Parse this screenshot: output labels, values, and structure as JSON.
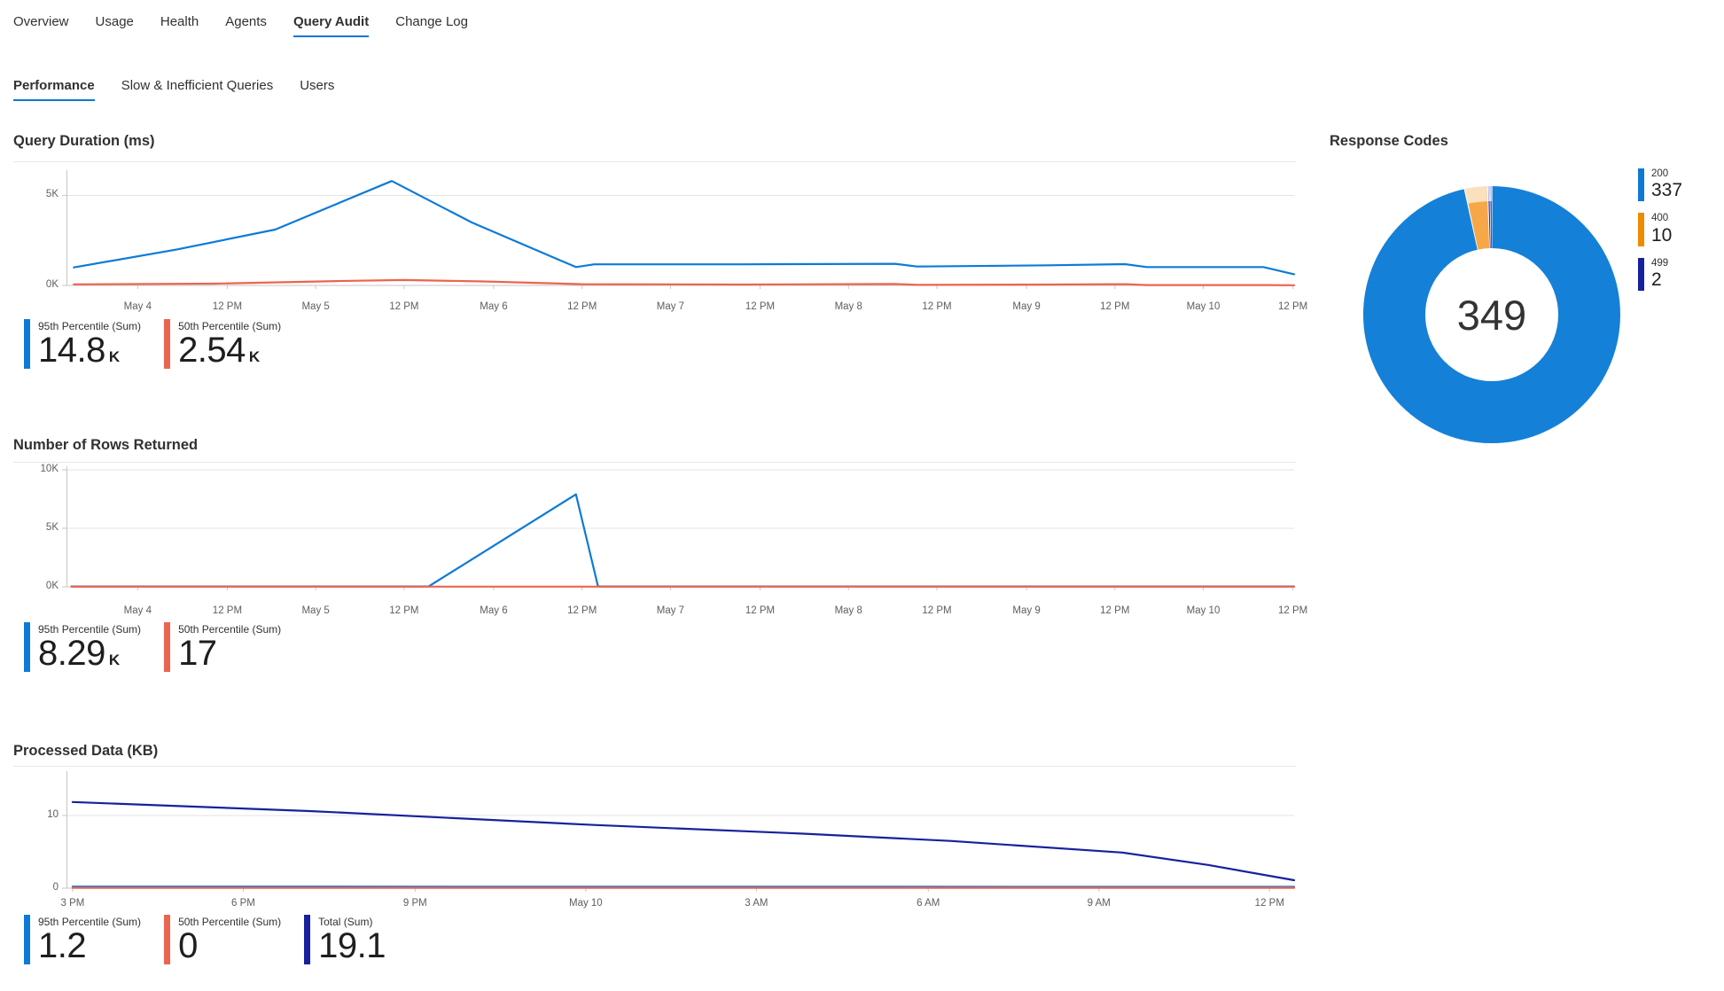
{
  "tabs_primary": {
    "items": [
      {
        "label": "Overview",
        "selected": false
      },
      {
        "label": "Usage",
        "selected": false
      },
      {
        "label": "Health",
        "selected": false
      },
      {
        "label": "Agents",
        "selected": false
      },
      {
        "label": "Query Audit",
        "selected": true
      },
      {
        "label": "Change Log",
        "selected": false
      }
    ]
  },
  "tabs_secondary": {
    "items": [
      {
        "label": "Performance",
        "selected": true
      },
      {
        "label": "Slow & Inefficient Queries",
        "selected": false
      },
      {
        "label": "Users",
        "selected": false
      }
    ]
  },
  "colors": {
    "accent_blue": "#0F78D4",
    "series_blue": "#0C7BD6",
    "series_red": "#EC6450",
    "series_navy": "#17219D",
    "legend_orange": "#F08A00",
    "donut_blue": "#1580D8",
    "donut_orange": "#F7A748",
    "donut_orange_light": "#FAE0BD",
    "donut_navy": "#17219D",
    "donut_navy_light": "#C6CBEC",
    "grid": "#E3E3E3",
    "axis_line": "#C8C6C4",
    "axis_text": "#605E5C",
    "text": "#323130",
    "value_text": "#1F1E1D"
  },
  "chart_data": [
    {
      "type": "line",
      "title": "Query Duration (ms)",
      "ylim": [
        0,
        6.4
      ],
      "unit": "K",
      "grid": true,
      "legend_position": "bottom-left",
      "y_ticks": [
        {
          "label": "5K",
          "v": 5
        },
        {
          "label": "0K",
          "v": 0
        }
      ],
      "x_ticks": [
        {
          "label": "May 4",
          "pos": 0.058
        },
        {
          "label": "12 PM",
          "pos": 0.131
        },
        {
          "label": "May 5",
          "pos": 0.203
        },
        {
          "label": "12 PM",
          "pos": 0.275
        },
        {
          "label": "May 6",
          "pos": 0.348
        },
        {
          "label": "12 PM",
          "pos": 0.42
        },
        {
          "label": "May 7",
          "pos": 0.492
        },
        {
          "label": "12 PM",
          "pos": 0.565
        },
        {
          "label": "May 8",
          "pos": 0.637
        },
        {
          "label": "12 PM",
          "pos": 0.709
        },
        {
          "label": "May 9",
          "pos": 0.782
        },
        {
          "label": "12 PM",
          "pos": 0.854
        },
        {
          "label": "May 10",
          "pos": 0.926
        },
        {
          "label": "12 PM",
          "pos": 0.999
        }
      ],
      "series": [
        {
          "name": "95th Percentile (Sum)",
          "display_value": "14.8",
          "suffix": "K",
          "color_key": "series_blue",
          "points": [
            [
              0.006,
              1.0
            ],
            [
              0.09,
              2.0
            ],
            [
              0.17,
              3.1
            ],
            [
              0.265,
              5.8
            ],
            [
              0.33,
              3.5
            ],
            [
              0.415,
              1.02
            ],
            [
              0.43,
              1.17
            ],
            [
              0.55,
              1.17
            ],
            [
              0.675,
              1.2
            ],
            [
              0.693,
              1.05
            ],
            [
              0.8,
              1.12
            ],
            [
              0.862,
              1.18
            ],
            [
              0.88,
              1.02
            ],
            [
              0.975,
              1.02
            ],
            [
              1,
              0.62
            ]
          ]
        },
        {
          "name": "50th Percentile (Sum)",
          "display_value": "2.54",
          "suffix": "K",
          "color_key": "series_red",
          "points": [
            [
              0.006,
              0.06
            ],
            [
              0.12,
              0.1
            ],
            [
              0.22,
              0.24
            ],
            [
              0.275,
              0.3
            ],
            [
              0.34,
              0.22
            ],
            [
              0.42,
              0.07
            ],
            [
              0.55,
              0.05
            ],
            [
              0.675,
              0.08
            ],
            [
              0.693,
              0.03
            ],
            [
              0.8,
              0.05
            ],
            [
              0.862,
              0.07
            ],
            [
              0.88,
              0.02
            ],
            [
              0.975,
              0.02
            ],
            [
              1,
              0.01
            ]
          ]
        }
      ]
    },
    {
      "type": "line",
      "title": "Number of Rows Returned",
      "ylim": [
        0,
        10.3
      ],
      "unit": "K",
      "grid": true,
      "legend_position": "bottom-left",
      "y_ticks": [
        {
          "label": "10K",
          "v": 10
        },
        {
          "label": "5K",
          "v": 5
        },
        {
          "label": "0K",
          "v": 0
        }
      ],
      "x_ticks": [
        {
          "label": "May 4",
          "pos": 0.058
        },
        {
          "label": "12 PM",
          "pos": 0.131
        },
        {
          "label": "May 5",
          "pos": 0.203
        },
        {
          "label": "12 PM",
          "pos": 0.275
        },
        {
          "label": "May 6",
          "pos": 0.348
        },
        {
          "label": "12 PM",
          "pos": 0.42
        },
        {
          "label": "May 7",
          "pos": 0.492
        },
        {
          "label": "12 PM",
          "pos": 0.565
        },
        {
          "label": "May 8",
          "pos": 0.637
        },
        {
          "label": "12 PM",
          "pos": 0.709
        },
        {
          "label": "May 9",
          "pos": 0.782
        },
        {
          "label": "12 PM",
          "pos": 0.854
        },
        {
          "label": "May 10",
          "pos": 0.926
        },
        {
          "label": "12 PM",
          "pos": 0.999
        }
      ],
      "series": [
        {
          "name": "95th Percentile (Sum)",
          "display_value": "8.29",
          "suffix": "K",
          "color_key": "series_blue",
          "points": [
            [
              0.004,
              0.03
            ],
            [
              0.295,
              0.03
            ],
            [
              0.415,
              7.9
            ],
            [
              0.433,
              0.03
            ],
            [
              1,
              0.03
            ]
          ]
        },
        {
          "name": "50th Percentile (Sum)",
          "display_value": "17",
          "suffix": "",
          "color_key": "series_red",
          "points": [
            [
              0.004,
              0.015
            ],
            [
              1,
              0.015
            ]
          ]
        }
      ]
    },
    {
      "type": "line",
      "title": "Processed Data (KB)",
      "ylim": [
        0,
        16.1
      ],
      "unit": "",
      "grid": true,
      "legend_position": "bottom-left",
      "y_ticks": [
        {
          "label": "10",
          "v": 10
        },
        {
          "label": "0",
          "v": 0
        }
      ],
      "x_ticks": [
        {
          "label": "3 PM",
          "pos": 0.005
        },
        {
          "label": "6 PM",
          "pos": 0.144
        },
        {
          "label": "9 PM",
          "pos": 0.284
        },
        {
          "label": "May 10",
          "pos": 0.423
        },
        {
          "label": "3 AM",
          "pos": 0.562
        },
        {
          "label": "6 AM",
          "pos": 0.702
        },
        {
          "label": "9 AM",
          "pos": 0.841
        },
        {
          "label": "12 PM",
          "pos": 0.98
        }
      ],
      "series": [
        {
          "name": "95th Percentile (Sum)",
          "display_value": "1.2",
          "suffix": "",
          "color_key": "series_blue",
          "points": [
            [
              0.005,
              0.22
            ],
            [
              1,
              0.18
            ]
          ]
        },
        {
          "name": "50th Percentile (Sum)",
          "display_value": "0",
          "suffix": "",
          "color_key": "series_red",
          "points": [
            [
              0.005,
              0.05
            ],
            [
              1,
              0.05
            ]
          ]
        },
        {
          "name": "Total (Sum)",
          "display_value": "19.1",
          "suffix": "",
          "color_key": "series_navy",
          "points": [
            [
              0.005,
              11.85
            ],
            [
              0.2,
              10.6
            ],
            [
              0.43,
              8.7
            ],
            [
              0.6,
              7.5
            ],
            [
              0.72,
              6.5
            ],
            [
              0.86,
              4.9
            ],
            [
              0.93,
              3.2
            ],
            [
              1,
              1.1
            ]
          ]
        }
      ]
    },
    {
      "type": "pie",
      "title": "Response Codes",
      "total_label": "349",
      "legend_position": "right",
      "slices": [
        {
          "label": "200",
          "value": 337,
          "color_key": "donut_blue",
          "legend_color_key": "accent_blue"
        },
        {
          "label": "400",
          "value": 10,
          "color_key": "donut_orange",
          "light_color_key": "donut_orange_light",
          "legend_color_key": "legend_orange"
        },
        {
          "label": "499",
          "value": 2,
          "color_key": "donut_navy",
          "light_color_key": "donut_navy_light",
          "legend_color_key": "series_navy",
          "split": 2
        }
      ]
    }
  ]
}
